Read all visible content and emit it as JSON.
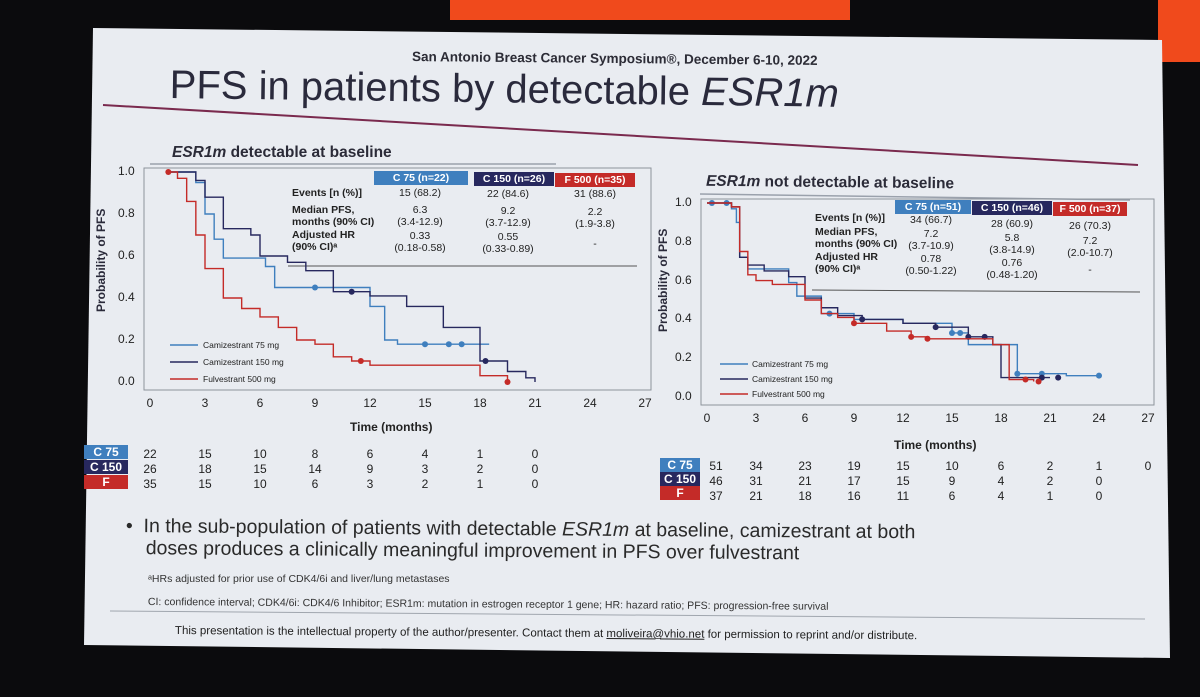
{
  "conference": "San Antonio Breast Cancer Symposium®, December 6-10, 2022",
  "title_prefix": "PFS in patients by detectable ",
  "title_italic": "ESR1m",
  "left": {
    "header_italic": "ESR1m",
    "header_rest": " detectable at baseline",
    "ylabel": "Probability of PFS",
    "xlabel": "Time (months)",
    "table": {
      "headers": [
        "C 75 (n=22)",
        "C 150 (n=26)",
        "F 500 (n=35)"
      ],
      "row_labels": [
        "Events [n (%)]",
        "Median PFS,",
        "months (90% CI)",
        "Adjusted HR",
        "(90% CI)ᵃ"
      ],
      "events": [
        "15 (68.2)",
        "22 (84.6)",
        "31 (88.6)"
      ],
      "median": [
        "6.3",
        "9.2",
        "2.2"
      ],
      "median_ci": [
        "(3.4-12.9)",
        "(3.7-12.9)",
        "(1.9-3.8)"
      ],
      "hr": [
        "0.33",
        "0.55",
        "-"
      ],
      "hr_ci": [
        "(0.18-0.58)",
        "(0.33-0.89)",
        ""
      ]
    },
    "legend": [
      "Camizestrant 75 mg",
      "Camizestrant 150 mg",
      "Fulvestrant 500 mg"
    ],
    "risk_labels": [
      "C 75",
      "C 150",
      "F"
    ],
    "risk_rows": [
      [
        "22",
        "15",
        "10",
        "8",
        "6",
        "4",
        "1",
        "0"
      ],
      [
        "26",
        "18",
        "15",
        "14",
        "9",
        "3",
        "2",
        "0"
      ],
      [
        "35",
        "15",
        "10",
        "6",
        "3",
        "2",
        "1",
        "0"
      ]
    ]
  },
  "right": {
    "header_italic": "ESR1m",
    "header_rest": " not detectable at baseline",
    "ylabel": "Probability of PFS",
    "xlabel": "Time (months)",
    "table": {
      "headers": [
        "C 75 (n=51)",
        "C 150 (n=46)",
        "F 500 (n=37)"
      ],
      "row_labels": [
        "Events [n (%)]",
        "Median PFS,",
        "months (90% CI)",
        "Adjusted HR",
        "(90% CI)ᵃ"
      ],
      "events": [
        "34 (66.7)",
        "28 (60.9)",
        "26 (70.3)"
      ],
      "median": [
        "7.2",
        "5.8",
        "7.2"
      ],
      "median_ci": [
        "(3.7-10.9)",
        "(3.8-14.9)",
        "(2.0-10.7)"
      ],
      "hr": [
        "0.78",
        "0.76",
        "-"
      ],
      "hr_ci": [
        "(0.50-1.22)",
        "(0.48-1.20)",
        ""
      ]
    },
    "legend": [
      "Camizestrant 75 mg",
      "Camizestrant 150 mg",
      "Fulvestrant 500 mg"
    ],
    "risk_labels": [
      "C 75",
      "C 150",
      "F"
    ],
    "risk_rows": [
      [
        "51",
        "34",
        "23",
        "19",
        "15",
        "10",
        "6",
        "2",
        "1",
        "0"
      ],
      [
        "46",
        "31",
        "21",
        "17",
        "15",
        "9",
        "4",
        "2",
        "0"
      ],
      [
        "37",
        "21",
        "18",
        "16",
        "11",
        "6",
        "4",
        "1",
        "0"
      ]
    ]
  },
  "colors": {
    "c75": "#3f7fbe",
    "c150": "#27285e",
    "f500": "#c42b28",
    "title_rule": "#7a2a4e"
  },
  "bullet_prefix": "In the sub-population of patients with detectable ",
  "bullet_italic": "ESR1m",
  "bullet_suffix": " at baseline, camizestrant at both",
  "bullet_line2": "doses produces a clinically meaningful improvement in PFS over fulvestrant",
  "footnote_a": "ᵃHRs adjusted for prior use of CDK4/6i and liver/lung metastases",
  "abbreviations": "CI: confidence interval; CDK4/6i: CDK4/6 Inhibitor; ESR1m: mutation in estrogen receptor 1 gene; HR: hazard ratio; PFS: progression-free survival",
  "footer_prefix": "This presentation is the intellectual property of the author/presenter. Contact them at ",
  "footer_email": "moliveira@vhio.net",
  "footer_suffix": " for permission to reprint and/or distribute.",
  "chart_data": [
    {
      "type": "line",
      "title": "ESR1m detectable at baseline",
      "xlabel": "Time (months)",
      "ylabel": "Probability of PFS",
      "xlim": [
        0,
        27
      ],
      "ylim": [
        0,
        1.0
      ],
      "xticks": [
        "0",
        "3",
        "6",
        "9",
        "12",
        "15",
        "18",
        "21",
        "24",
        "27"
      ],
      "yticks": [
        "0.0",
        "0.2",
        "0.4",
        "0.6",
        "0.8",
        "1.0"
      ],
      "series": [
        {
          "name": "Camizestrant 75 mg",
          "color": "#3f7fbe",
          "x": [
            1,
            2.5,
            3,
            3.5,
            4,
            6.3,
            6.8,
            9,
            12,
            12.8,
            13.5,
            15.5,
            16.5,
            18.5
          ],
          "y": [
            1.0,
            0.95,
            0.8,
            0.68,
            0.59,
            0.55,
            0.45,
            0.45,
            0.36,
            0.2,
            0.18,
            0.18,
            0.18,
            0.18
          ],
          "censor_x": [
            9,
            15,
            16.3,
            17
          ]
        },
        {
          "name": "Camizestrant 150 mg",
          "color": "#27285e",
          "x": [
            1,
            2.5,
            3,
            4,
            5.5,
            6,
            7.5,
            8.5,
            10,
            11,
            12,
            14,
            16,
            18,
            19.5,
            20.5,
            21
          ],
          "y": [
            1.0,
            0.96,
            0.88,
            0.73,
            0.7,
            0.6,
            0.57,
            0.53,
            0.43,
            0.43,
            0.41,
            0.36,
            0.26,
            0.1,
            0.05,
            0.02,
            0.0
          ],
          "censor_x": [
            11,
            18.3
          ]
        },
        {
          "name": "Fulvestrant 500 mg",
          "color": "#c42b28",
          "x": [
            1,
            1.5,
            2,
            2.5,
            3,
            4,
            5,
            6,
            7,
            8,
            9,
            10,
            11,
            12,
            15,
            18,
            19.5
          ],
          "y": [
            1.0,
            0.97,
            0.86,
            0.7,
            0.54,
            0.4,
            0.35,
            0.31,
            0.26,
            0.2,
            0.18,
            0.12,
            0.1,
            0.08,
            0.08,
            0.03,
            0.0
          ],
          "censor_x": [
            1,
            11.5,
            19.5
          ]
        }
      ]
    },
    {
      "type": "line",
      "title": "ESR1m not detectable at baseline",
      "xlabel": "Time (months)",
      "ylabel": "Probability of PFS",
      "xlim": [
        0,
        27
      ],
      "ylim": [
        0,
        1.0
      ],
      "xticks": [
        "0",
        "3",
        "6",
        "9",
        "12",
        "15",
        "18",
        "21",
        "24",
        "27"
      ],
      "yticks": [
        "0.0",
        "0.2",
        "0.4",
        "0.6",
        "0.8",
        "1.0"
      ],
      "series": [
        {
          "name": "Camizestrant 75 mg",
          "color": "#3f7fbe",
          "x": [
            0,
            1.5,
            1.8,
            2,
            2.5,
            3.5,
            5,
            5.5,
            7,
            9,
            12,
            15,
            16,
            18,
            19,
            22,
            24
          ],
          "y": [
            1.0,
            0.97,
            0.9,
            0.72,
            0.66,
            0.66,
            0.59,
            0.52,
            0.43,
            0.4,
            0.38,
            0.33,
            0.27,
            0.27,
            0.12,
            0.11,
            0.11
          ],
          "censor_x": [
            0.3,
            1.2,
            7.5,
            15,
            15.5,
            19,
            20.5,
            24
          ]
        },
        {
          "name": "Camizestrant 150 mg",
          "color": "#27285e",
          "x": [
            0,
            1.5,
            2,
            2.5,
            3.5,
            5,
            6,
            7,
            8,
            9.5,
            12,
            14,
            16,
            17.5,
            18,
            21
          ],
          "y": [
            1.0,
            0.98,
            0.72,
            0.68,
            0.65,
            0.62,
            0.51,
            0.46,
            0.42,
            0.4,
            0.38,
            0.36,
            0.31,
            0.27,
            0.1,
            0.1
          ],
          "censor_x": [
            9.5,
            14,
            16,
            17,
            20.5,
            21.5
          ]
        },
        {
          "name": "Fulvestrant 500 mg",
          "color": "#c42b28",
          "x": [
            0,
            1.5,
            2,
            2.5,
            3,
            4,
            6,
            7,
            8,
            9,
            11,
            12.5,
            13.5,
            17.5,
            18.5,
            20
          ],
          "y": [
            1.0,
            0.98,
            0.75,
            0.63,
            0.6,
            0.58,
            0.5,
            0.43,
            0.41,
            0.38,
            0.34,
            0.31,
            0.3,
            0.27,
            0.09,
            0.08
          ],
          "censor_x": [
            9,
            12.5,
            13.5,
            19.5,
            20.3
          ]
        }
      ]
    }
  ]
}
